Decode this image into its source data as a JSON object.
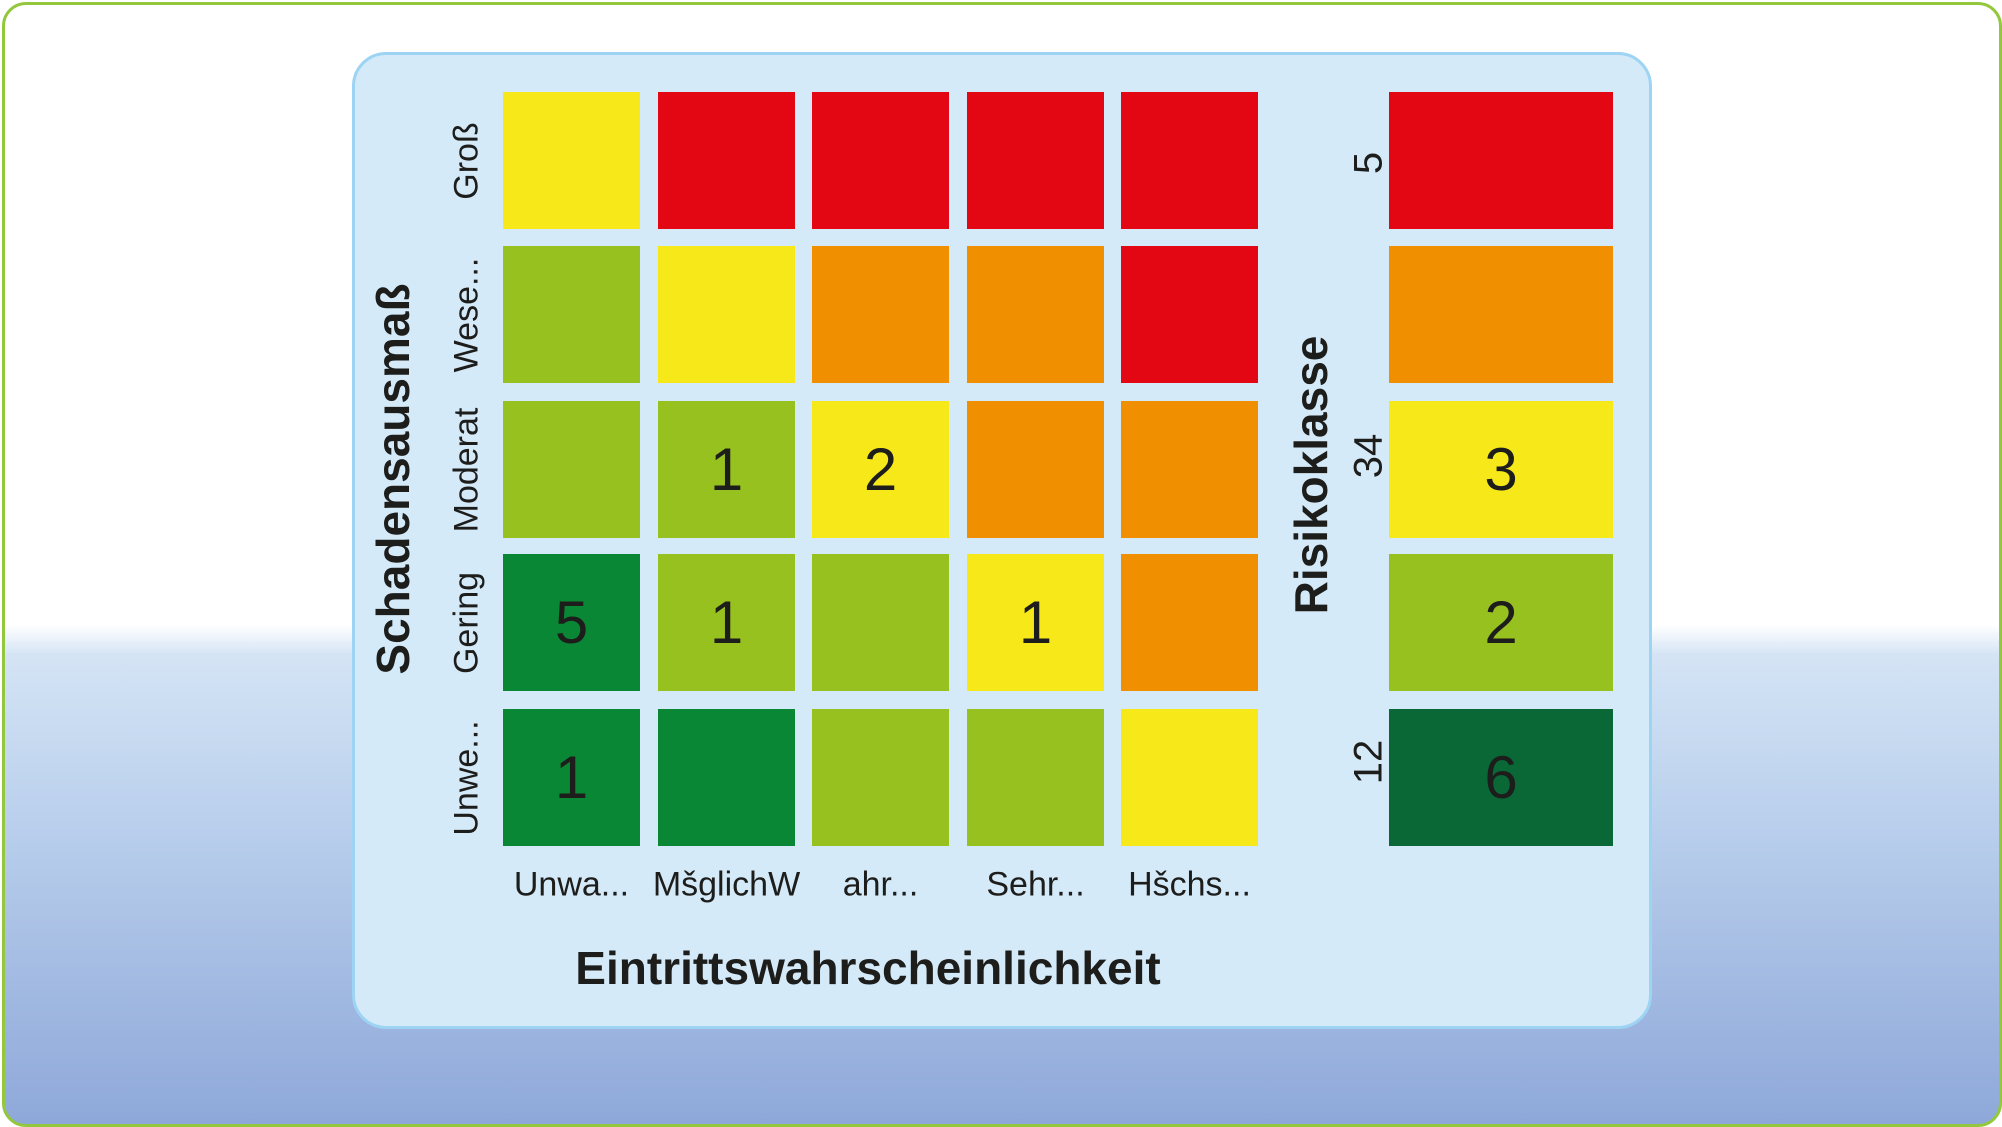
{
  "chart_data": {
    "type": "heatmap",
    "xlabel": "Eintrittswahrscheinlichkeit",
    "ylabel": "Schadensausmaß",
    "x_categories": [
      "Unwa...",
      "MšglichW",
      "ahr...",
      "Sehr...",
      "Hšchs..."
    ],
    "y_categories": [
      "Groß",
      "Wese...",
      "Moderat",
      "Gering",
      "Unwe..."
    ],
    "colors": {
      "red": "#e30613",
      "orange": "#f08f00",
      "yellow": "#f7e81a",
      "lightgreen": "#97c11f",
      "green": "#0a8735",
      "darkgreen": "#0a6837"
    },
    "cell_colors": [
      [
        "yellow",
        "red",
        "red",
        "red",
        "red"
      ],
      [
        "lightgreen",
        "yellow",
        "orange",
        "orange",
        "red"
      ],
      [
        "lightgreen",
        "lightgreen",
        "yellow",
        "orange",
        "orange"
      ],
      [
        "green",
        "lightgreen",
        "lightgreen",
        "yellow",
        "orange"
      ],
      [
        "green",
        "green",
        "lightgreen",
        "lightgreen",
        "yellow"
      ]
    ],
    "values": [
      [
        "",
        "",
        "",
        "",
        ""
      ],
      [
        "",
        "",
        "",
        "",
        ""
      ],
      [
        "",
        "1",
        "2",
        "",
        ""
      ],
      [
        "5",
        "1",
        "",
        "1",
        ""
      ],
      [
        "1",
        "",
        "",
        "",
        ""
      ]
    ],
    "legend": {
      "title": "Risikoklasse",
      "classes": [
        {
          "color": "red",
          "count": ""
        },
        {
          "color": "orange",
          "count": ""
        },
        {
          "color": "yellow",
          "count": "3"
        },
        {
          "color": "lightgreen",
          "count": "2"
        },
        {
          "color": "darkgreen",
          "count": "6"
        }
      ],
      "tick_labels": [
        "5",
        "34",
        "12"
      ]
    }
  }
}
